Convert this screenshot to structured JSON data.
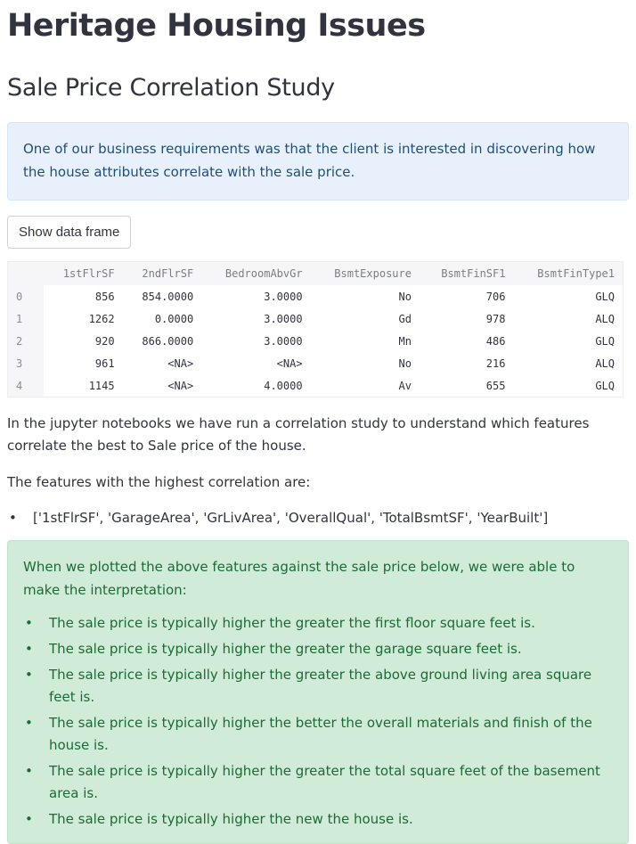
{
  "title": "Heritage Housing Issues",
  "subtitle": "Sale Price Correlation Study",
  "info": "One of our business requirements was that the client is interested in discovering how the house attributes correlate with the sale price.",
  "button_label": "Show data frame",
  "table": {
    "columns": [
      "",
      "1stFlrSF",
      "2ndFlrSF",
      "BedroomAbvGr",
      "BsmtExposure",
      "BsmtFinSF1",
      "BsmtFinType1"
    ],
    "rows": [
      [
        "0",
        "856",
        "854.0000",
        "3.0000",
        "No",
        "706",
        "GLQ"
      ],
      [
        "1",
        "1262",
        "0.0000",
        "3.0000",
        "Gd",
        "978",
        "ALQ"
      ],
      [
        "2",
        "920",
        "866.0000",
        "3.0000",
        "Mn",
        "486",
        "GLQ"
      ],
      [
        "3",
        "961",
        "<NA>",
        "<NA>",
        "No",
        "216",
        "ALQ"
      ],
      [
        "4",
        "1145",
        "<NA>",
        "4.0000",
        "Av",
        "655",
        "GLQ"
      ]
    ]
  },
  "paragraph1": "In the jupyter notebooks we have run a correlation study to understand which features correlate the best to Sale price of the house.",
  "paragraph2": "The features with the highest correlation are:",
  "features_list": "['1stFlrSF', 'GarageArea', 'GrLivArea', 'OverallQual', 'TotalBsmtSF', 'YearBuilt']",
  "success": {
    "intro": "When we plotted the above features against the sale price below, we were able to make the interpretation:",
    "items": [
      "The sale price is typically higher the greater the first floor square feet is.",
      "The sale price is typically higher the greater the garage square feet is.",
      "The sale price is typically higher the greater the above ground living area square feet is.",
      "The sale price is typically higher the better the overall materials and finish of the house is.",
      "The sale price is typically higher the greater the total square feet of the basement area is.",
      "The sale price is typically higher the new the house is."
    ]
  }
}
